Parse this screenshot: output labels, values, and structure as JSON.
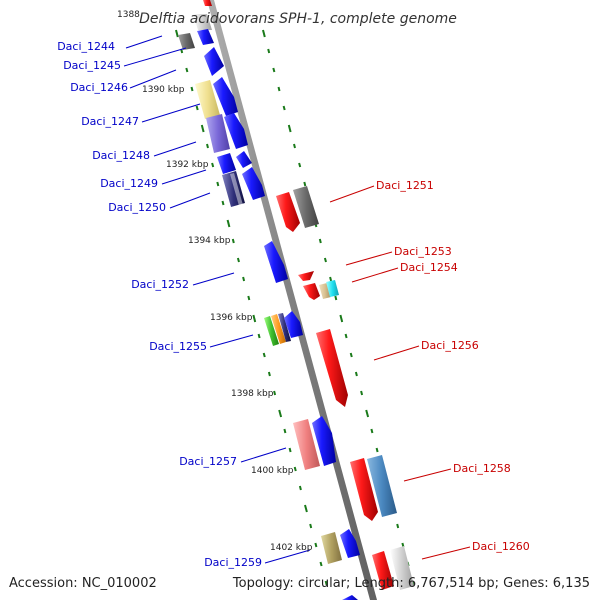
{
  "title": "Delftia acidovorans SPH-1, complete genome",
  "accession": "Accession: NC_010002",
  "topology": "Topology: circular; Length: 6,767,514 bp; Genes: 6,135",
  "kbp_labels": [
    "1388",
    "1390 kbp",
    "1392 kbp",
    "1394 kbp",
    "1396 kbp",
    "1398 kbp",
    "1400 kbp",
    "1402 kbp"
  ],
  "forward_genes": [
    "Daci_1244",
    "Daci_1245",
    "Daci_1246",
    "Daci_1247",
    "Daci_1248",
    "Daci_1249",
    "Daci_1250",
    "Daci_1252",
    "Daci_1255",
    "Daci_1257",
    "Daci_1259"
  ],
  "reverse_genes": [
    "Daci_1251",
    "Daci_1253",
    "Daci_1254",
    "Daci_1256",
    "Daci_1258",
    "Daci_1260"
  ],
  "colors": {
    "forward_strand": "#0000ee",
    "reverse_strand": "#ee0000",
    "backbone": "#888888",
    "ticks": "#1a7a1a",
    "forward_label": "#0000c8",
    "reverse_label": "#c80000"
  }
}
